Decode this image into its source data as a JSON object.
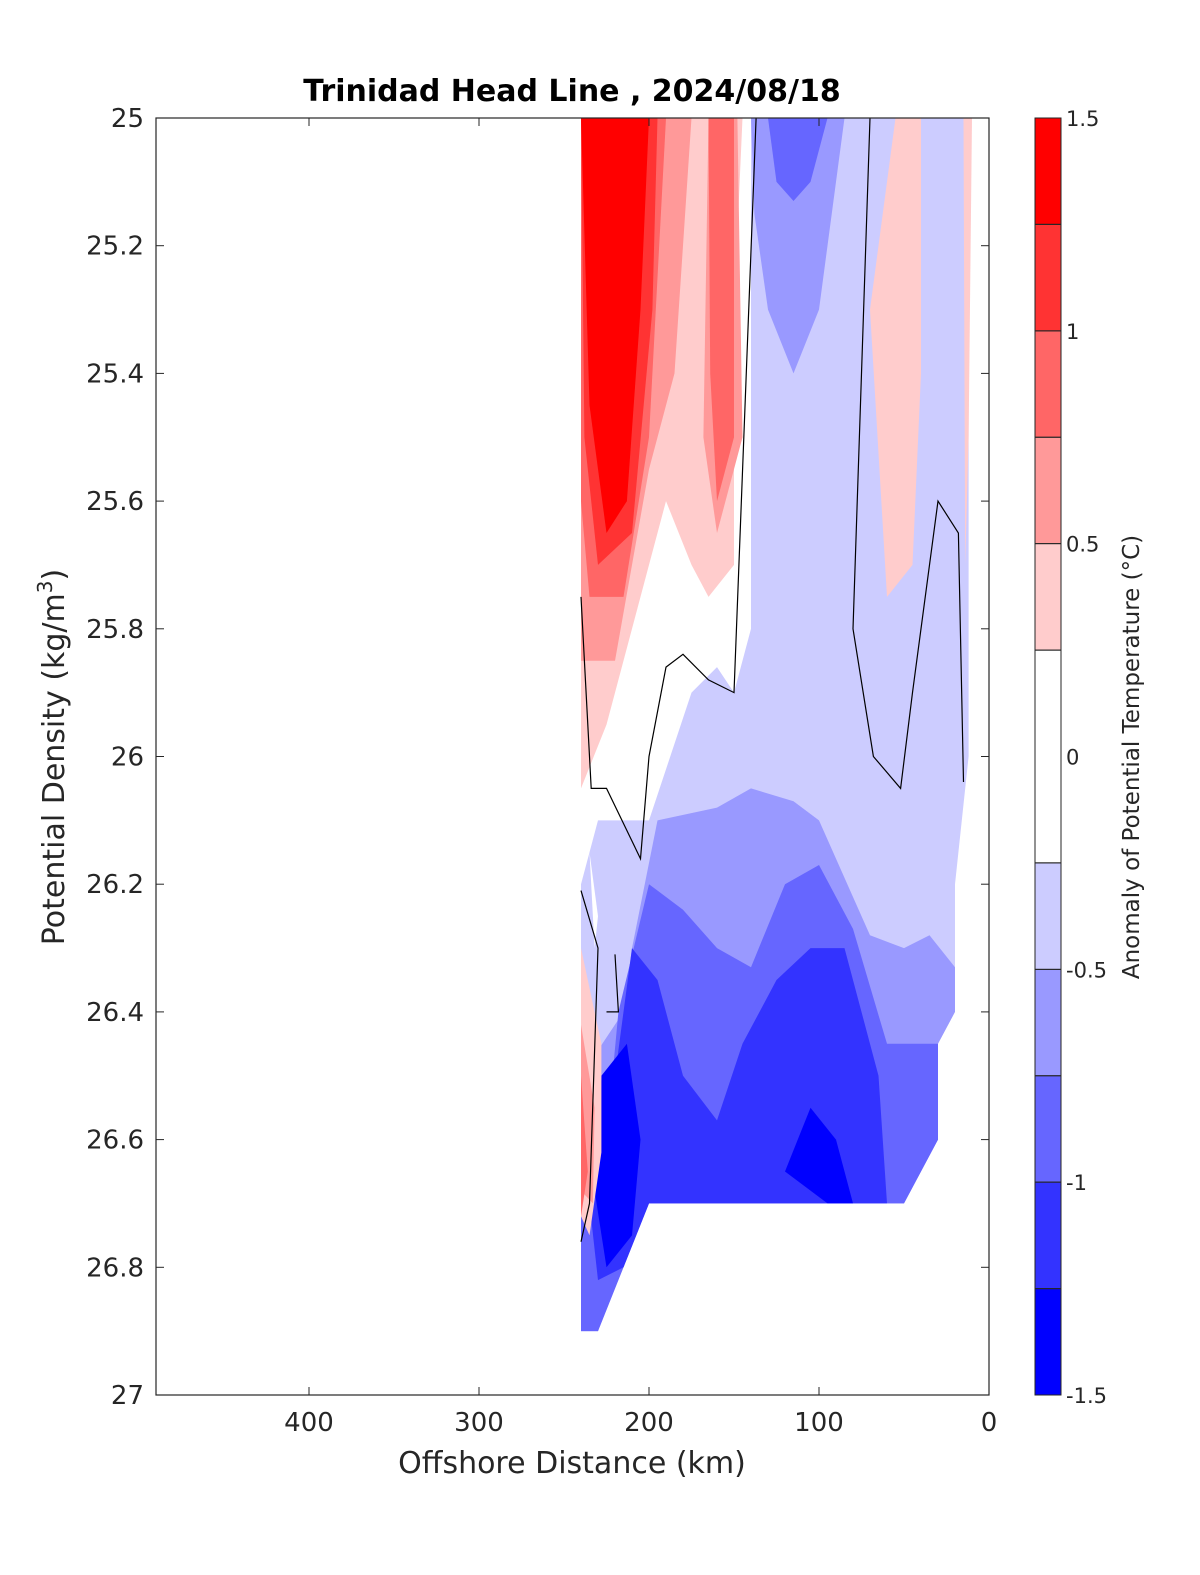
{
  "chart_data": {
    "type": "heatmap",
    "title": "Trinidad Head Line , 2024/08/18",
    "xlabel": "Offshore Distance (km)",
    "ylabel_main": "Potential Density (kg/m",
    "ylabel_sup": "3",
    "ylabel_close": ")",
    "colorbar_label": "Anomaly of Potential Temperature (°C)",
    "xlim": [
      490,
      0
    ],
    "x_reversed": true,
    "ylim": [
      25,
      27
    ],
    "y_reversed": true,
    "x_ticks": [
      400,
      300,
      200,
      100,
      0
    ],
    "x_tick_labels": [
      "400",
      "300",
      "200",
      "100",
      "0"
    ],
    "y_ticks": [
      25,
      25.2,
      25.4,
      25.6,
      25.8,
      26,
      26.2,
      26.4,
      26.6,
      26.8,
      27
    ],
    "y_tick_labels": [
      "25",
      "25.2",
      "25.4",
      "25.6",
      "25.8",
      "26",
      "26.2",
      "26.4",
      "26.6",
      "26.8",
      "27"
    ],
    "colorbar_ticks": [
      1.5,
      1,
      0.5,
      0,
      -0.5,
      -1,
      -1.5
    ],
    "colorbar_tick_labels": [
      "1.5",
      "1",
      "0.5",
      "0",
      "-0.5",
      "-1",
      "-1.5"
    ],
    "color_levels": [
      {
        "range": [
          1.25,
          1.5
        ],
        "color": "#ff0000"
      },
      {
        "range": [
          1.0,
          1.25
        ],
        "color": "#ff3333"
      },
      {
        "range": [
          0.75,
          1.0
        ],
        "color": "#ff6666"
      },
      {
        "range": [
          0.5,
          0.75
        ],
        "color": "#ff9999"
      },
      {
        "range": [
          0.25,
          0.5
        ],
        "color": "#ffcccc"
      },
      {
        "range": [
          -0.25,
          0.25
        ],
        "color": "#ffffff"
      },
      {
        "range": [
          -0.5,
          -0.25
        ],
        "color": "#ccccff"
      },
      {
        "range": [
          -0.75,
          -0.5
        ],
        "color": "#9999ff"
      },
      {
        "range": [
          -1.0,
          -0.75
        ],
        "color": "#6666ff"
      },
      {
        "range": [
          -1.25,
          -1.0
        ],
        "color": "#3333ff"
      },
      {
        "range": [
          -1.5,
          -1.25
        ],
        "color": "#0000ff"
      }
    ],
    "filled_regions": [
      {
        "level": -0.375,
        "points": [
          [
            240,
            25.0
          ],
          [
            12,
            25.0
          ],
          [
            12,
            26.0
          ],
          [
            20,
            26.2
          ],
          [
            20,
            26.4
          ],
          [
            30,
            26.45
          ],
          [
            30,
            26.6
          ],
          [
            50,
            26.7
          ],
          [
            200,
            26.7
          ],
          [
            220,
            26.8
          ],
          [
            230,
            26.9
          ],
          [
            240,
            26.9
          ],
          [
            240,
            26.2
          ],
          [
            230,
            26.1
          ],
          [
            200,
            26.1
          ],
          [
            175,
            25.9
          ],
          [
            160,
            25.86
          ],
          [
            150,
            25.9
          ],
          [
            140,
            25.8
          ],
          [
            140,
            25.0
          ]
        ]
      },
      {
        "level": -0.625,
        "points": [
          [
            210,
            26.3
          ],
          [
            195,
            26.1
          ],
          [
            160,
            26.08
          ],
          [
            140,
            26.05
          ],
          [
            115,
            26.07
          ],
          [
            100,
            26.1
          ],
          [
            70,
            26.28
          ],
          [
            50,
            26.3
          ],
          [
            35,
            26.28
          ],
          [
            20,
            26.33
          ],
          [
            20,
            26.4
          ],
          [
            30,
            26.45
          ],
          [
            30,
            26.6
          ],
          [
            50,
            26.7
          ],
          [
            200,
            26.7
          ],
          [
            230,
            26.9
          ],
          [
            240,
            26.9
          ],
          [
            240,
            26.5
          ],
          [
            215,
            26.4
          ]
        ]
      },
      {
        "level": -0.875,
        "points": [
          [
            218,
            26.4
          ],
          [
            200,
            26.2
          ],
          [
            180,
            26.24
          ],
          [
            160,
            26.3
          ],
          [
            140,
            26.33
          ],
          [
            120,
            26.2
          ],
          [
            100,
            26.17
          ],
          [
            80,
            26.27
          ],
          [
            60,
            26.45
          ],
          [
            40,
            26.45
          ],
          [
            30,
            26.45
          ],
          [
            30,
            26.6
          ],
          [
            50,
            26.7
          ],
          [
            200,
            26.7
          ],
          [
            230,
            26.9
          ],
          [
            240,
            26.9
          ],
          [
            240,
            26.7
          ],
          [
            225,
            26.6
          ]
        ]
      },
      {
        "level": -1.125,
        "points": [
          [
            220,
            26.5
          ],
          [
            210,
            26.3
          ],
          [
            195,
            26.35
          ],
          [
            180,
            26.5
          ],
          [
            160,
            26.57
          ],
          [
            145,
            26.45
          ],
          [
            125,
            26.35
          ],
          [
            105,
            26.3
          ],
          [
            85,
            26.3
          ],
          [
            65,
            26.5
          ],
          [
            60,
            26.7
          ],
          [
            200,
            26.7
          ],
          [
            215,
            26.8
          ],
          [
            230,
            26.82
          ],
          [
            235,
            26.7
          ]
        ]
      },
      {
        "level": -1.375,
        "points": [
          [
            232,
            26.68
          ],
          [
            228,
            26.5
          ],
          [
            213,
            26.45
          ],
          [
            205,
            26.6
          ],
          [
            210,
            26.75
          ],
          [
            225,
            26.8
          ]
        ]
      },
      {
        "level": -1.375,
        "points": [
          [
            120,
            26.65
          ],
          [
            105,
            26.55
          ],
          [
            90,
            26.6
          ],
          [
            80,
            26.7
          ],
          [
            95,
            26.7
          ]
        ]
      },
      {
        "level": -0.625,
        "points": [
          [
            140,
            25.0
          ],
          [
            85,
            25.0
          ],
          [
            95,
            25.2
          ],
          [
            100,
            25.3
          ],
          [
            115,
            25.4
          ],
          [
            130,
            25.3
          ],
          [
            138,
            25.15
          ]
        ]
      },
      {
        "level": -0.875,
        "points": [
          [
            130,
            25.0
          ],
          [
            95,
            25.0
          ],
          [
            105,
            25.1
          ],
          [
            115,
            25.13
          ],
          [
            125,
            25.1
          ]
        ]
      },
      {
        "level": 0.375,
        "points": [
          [
            240,
            25.0
          ],
          [
            145,
            25.0
          ],
          [
            150,
            25.3
          ],
          [
            150,
            25.7
          ],
          [
            165,
            25.75
          ],
          [
            175,
            25.7
          ],
          [
            190,
            25.6
          ],
          [
            200,
            25.7
          ],
          [
            225,
            25.95
          ],
          [
            240,
            26.05
          ]
        ]
      },
      {
        "level": 0.625,
        "points": [
          [
            240,
            25.0
          ],
          [
            175,
            25.0
          ],
          [
            185,
            25.4
          ],
          [
            200,
            25.55
          ],
          [
            220,
            25.85
          ],
          [
            240,
            25.85
          ]
        ]
      },
      {
        "level": 0.625,
        "points": [
          [
            165,
            25.0
          ],
          [
            148,
            25.0
          ],
          [
            145,
            25.5
          ],
          [
            160,
            25.65
          ],
          [
            168,
            25.5
          ]
        ]
      },
      {
        "level": 0.875,
        "points": [
          [
            240,
            25.0
          ],
          [
            190,
            25.0
          ],
          [
            200,
            25.5
          ],
          [
            215,
            25.75
          ],
          [
            235,
            25.75
          ],
          [
            240,
            25.6
          ]
        ]
      },
      {
        "level": 0.875,
        "points": [
          [
            165,
            25.0
          ],
          [
            150,
            25.0
          ],
          [
            150,
            25.5
          ],
          [
            160,
            25.6
          ],
          [
            164,
            25.4
          ]
        ]
      },
      {
        "level": 1.125,
        "points": [
          [
            240,
            25.0
          ],
          [
            195,
            25.0
          ],
          [
            198,
            25.3
          ],
          [
            210,
            25.65
          ],
          [
            230,
            25.7
          ],
          [
            238,
            25.5
          ]
        ]
      },
      {
        "level": 1.375,
        "points": [
          [
            240,
            25.0
          ],
          [
            200,
            25.0
          ],
          [
            205,
            25.3
          ],
          [
            213,
            25.6
          ],
          [
            225,
            25.65
          ],
          [
            235,
            25.45
          ]
        ]
      },
      {
        "level": 0.375,
        "points": [
          [
            55,
            25.0
          ],
          [
            40,
            25.0
          ],
          [
            40,
            25.4
          ],
          [
            45,
            25.7
          ],
          [
            60,
            25.75
          ],
          [
            70,
            25.3
          ]
        ]
      },
      {
        "level": 0.375,
        "points": [
          [
            15,
            25.0
          ],
          [
            10,
            25.0
          ],
          [
            12,
            25.5
          ],
          [
            14,
            25.7
          ]
        ]
      },
      {
        "level": 0.375,
        "points": [
          [
            240,
            26.3
          ],
          [
            228,
            26.45
          ],
          [
            228,
            26.62
          ],
          [
            235,
            26.75
          ],
          [
            240,
            26.72
          ]
        ]
      },
      {
        "level": 0.625,
        "points": [
          [
            240,
            26.42
          ],
          [
            232,
            26.55
          ],
          [
            233,
            26.7
          ],
          [
            240,
            26.68
          ]
        ]
      },
      {
        "level": 0.875,
        "points": [
          [
            240,
            26.5
          ],
          [
            236,
            26.65
          ],
          [
            240,
            26.72
          ]
        ]
      },
      {
        "level": 0,
        "points": [
          [
            235,
            26.15
          ],
          [
            230,
            26.25
          ],
          [
            232,
            26.3
          ]
        ]
      }
    ],
    "zero_contours": [
      [
        [
          240,
          25.75
        ],
        [
          234,
          26.05
        ],
        [
          225,
          26.05
        ],
        [
          205,
          26.16
        ],
        [
          200,
          26.0
        ],
        [
          190,
          25.86
        ],
        [
          180,
          25.84
        ],
        [
          165,
          25.88
        ],
        [
          150,
          25.9
        ],
        [
          137,
          25.0
        ]
      ],
      [
        [
          70,
          25.0
        ],
        [
          75,
          25.4
        ],
        [
          80,
          25.8
        ],
        [
          68,
          26.0
        ],
        [
          52,
          26.05
        ],
        [
          45,
          25.9
        ],
        [
          30,
          25.6
        ],
        [
          18,
          25.65
        ],
        [
          15,
          26.04
        ]
      ],
      [
        [
          240,
          26.21
        ],
        [
          230,
          26.3
        ],
        [
          235,
          26.7
        ],
        [
          240,
          26.76
        ]
      ],
      [
        [
          220,
          26.31
        ],
        [
          218,
          26.4
        ],
        [
          225,
          26.4
        ]
      ]
    ]
  }
}
